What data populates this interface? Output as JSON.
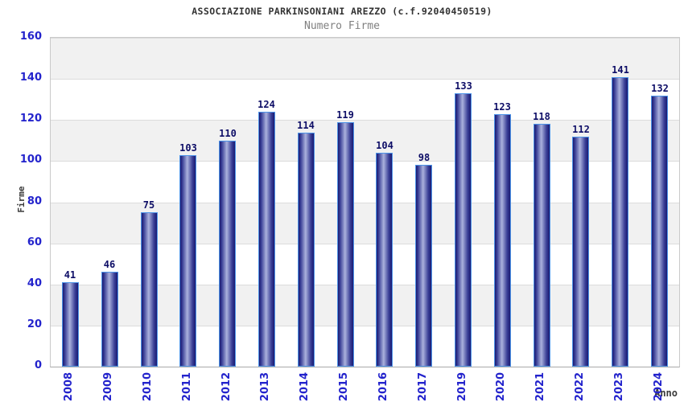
{
  "chart_data": {
    "type": "bar",
    "title": "ASSOCIAZIONE PARKINSONIANI AREZZO (c.f.92040450519)",
    "subtitle": "Numero Firme",
    "xlabel": "Anno",
    "ylabel": "Firme",
    "categories": [
      "2008",
      "2009",
      "2010",
      "2011",
      "2012",
      "2013",
      "2014",
      "2015",
      "2016",
      "2017",
      "2019",
      "2020",
      "2021",
      "2022",
      "2023",
      "2024"
    ],
    "values": [
      41,
      46,
      75,
      103,
      110,
      124,
      114,
      119,
      104,
      98,
      133,
      123,
      118,
      112,
      141,
      132
    ],
    "ylim": [
      0,
      160
    ],
    "ytick_step": 20,
    "yticks": [
      0,
      20,
      40,
      60,
      80,
      100,
      120,
      140,
      160
    ],
    "grid": true,
    "alternating_bands": true,
    "legend_position": "none",
    "colors": {
      "background": "#ffffff",
      "title": "#333333",
      "subtitle": "#808080",
      "axis_title": "#3a3a3a",
      "tick_label": "#2323cc",
      "value_label": "#0d0d66",
      "band": "#f1f1f1",
      "gridline": "#dcdcdc",
      "plot_border": "#c9c9c9",
      "bar_edge": "#1a1a72",
      "bar_mid": "#3a3f96",
      "bar_highlight": "#aab1dd",
      "bar_outline": "#4d94e8"
    }
  }
}
